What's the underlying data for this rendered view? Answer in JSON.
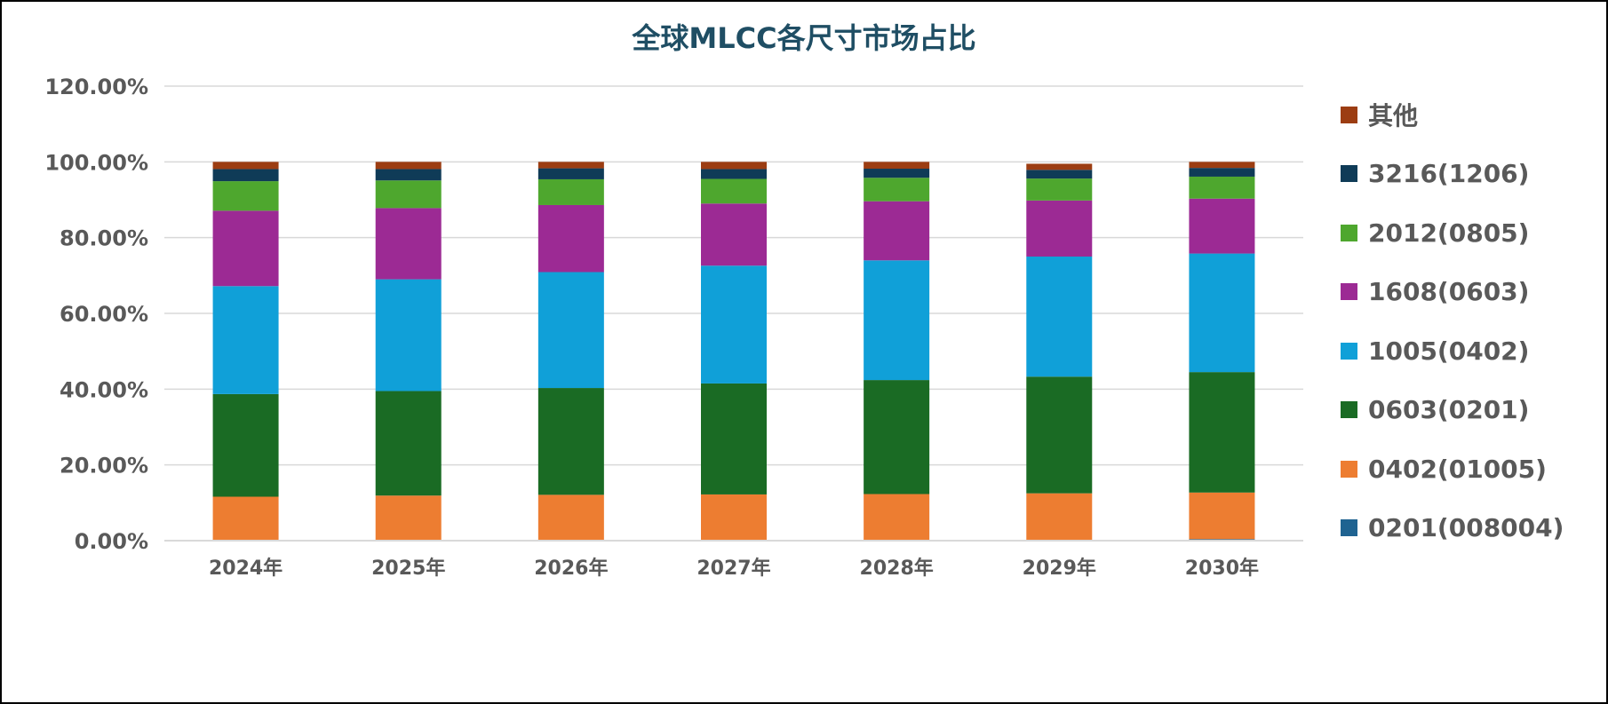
{
  "chart_data": {
    "type": "bar",
    "stacked": true,
    "title": "全球MLCC各尺寸市场占比",
    "xlabel": "",
    "ylabel": "",
    "ylim": [
      0,
      120
    ],
    "yticks": [
      "0.00%",
      "20.00%",
      "40.00%",
      "60.00%",
      "80.00%",
      "100.00%",
      "120.00%"
    ],
    "grid": true,
    "legend_position": "right",
    "categories": [
      "2024年",
      "2025年",
      "2026年",
      "2027年",
      "2028年",
      "2029年",
      "2030年"
    ],
    "series": [
      {
        "name": "0201(008004)",
        "color": "#1f6391",
        "values": [
          0.1,
          0.1,
          0.1,
          0.1,
          0.1,
          0.2,
          0.4
        ]
      },
      {
        "name": "0402(01005)",
        "color": "#ed7d31",
        "values": [
          11.5,
          11.8,
          12.0,
          12.1,
          12.2,
          12.3,
          12.3
        ]
      },
      {
        "name": "0603(0201)",
        "color": "#1a6b24",
        "values": [
          27.1,
          27.6,
          28.2,
          29.3,
          30.1,
          30.8,
          31.8
        ]
      },
      {
        "name": "1005(0402)",
        "color": "#10a0d8",
        "values": [
          28.5,
          29.5,
          30.6,
          31.1,
          31.6,
          31.7,
          31.3
        ]
      },
      {
        "name": "1608(0603)",
        "color": "#9c2a94",
        "values": [
          19.9,
          18.8,
          17.7,
          16.4,
          15.6,
          14.8,
          14.5
        ]
      },
      {
        "name": "2012(0805)",
        "color": "#4ea72e",
        "values": [
          7.8,
          7.3,
          6.8,
          6.5,
          6.2,
          5.8,
          5.8
        ]
      },
      {
        "name": "3216(1206)",
        "color": "#0f3b57",
        "values": [
          3.2,
          3.0,
          2.9,
          2.6,
          2.4,
          2.3,
          2.3
        ]
      },
      {
        "name": "其他",
        "color": "#9c3d12",
        "values": [
          1.9,
          1.9,
          1.7,
          1.9,
          1.8,
          1.6,
          1.6
        ]
      }
    ]
  }
}
